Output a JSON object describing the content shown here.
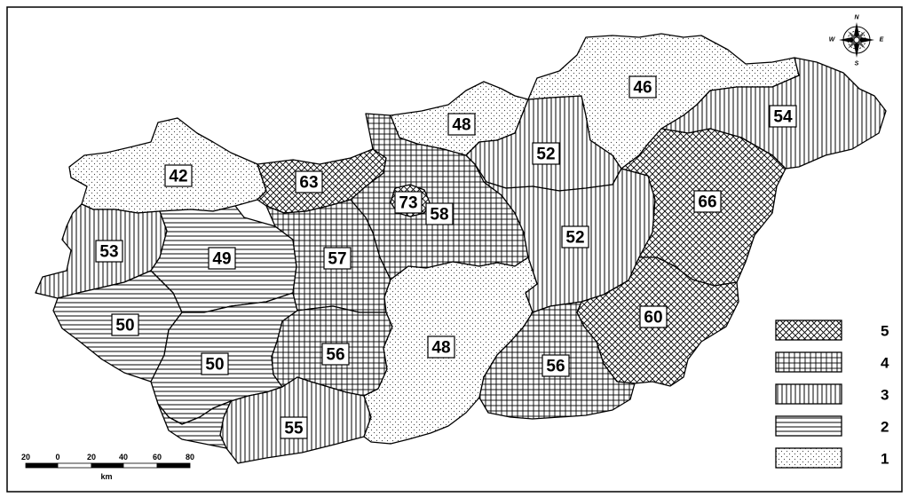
{
  "legend": {
    "title": "",
    "classes": [
      {
        "label": "5",
        "pattern": "crosshatch"
      },
      {
        "label": "4",
        "pattern": "grid"
      },
      {
        "label": "3",
        "pattern": "vertical"
      },
      {
        "label": "2",
        "pattern": "horizontal"
      },
      {
        "label": "1",
        "pattern": "dots"
      }
    ]
  },
  "regions": [
    {
      "name": "nw-dots",
      "value": "42",
      "class": 1
    },
    {
      "name": "west-vertical",
      "value": "53",
      "class": 3
    },
    {
      "name": "west-horizontal",
      "value": "49",
      "class": 2
    },
    {
      "name": "sw-horizontal-west",
      "value": "50",
      "class": 2
    },
    {
      "name": "sw-horizontal-south",
      "value": "50",
      "class": 2
    },
    {
      "name": "north-crosshatch",
      "value": "63",
      "class": 5
    },
    {
      "name": "central-grid-west",
      "value": "57",
      "class": 4
    },
    {
      "name": "capital",
      "value": "73",
      "class": 5
    },
    {
      "name": "central-grid",
      "value": "58",
      "class": 4
    },
    {
      "name": "south-grid-west",
      "value": "56",
      "class": 4
    },
    {
      "name": "south-vertical",
      "value": "55",
      "class": 3
    },
    {
      "name": "north-dots",
      "value": "48",
      "class": 1
    },
    {
      "name": "north-vertical",
      "value": "52",
      "class": 3
    },
    {
      "name": "central-east-vertical",
      "value": "52",
      "class": 3
    },
    {
      "name": "northeast-dots",
      "value": "46",
      "class": 1
    },
    {
      "name": "far-northeast-vertical",
      "value": "54",
      "class": 3
    },
    {
      "name": "east-crosshatch",
      "value": "66",
      "class": 5
    },
    {
      "name": "southeast-crosshatch",
      "value": "60",
      "class": 5
    },
    {
      "name": "south-central-dots",
      "value": "48",
      "class": 1
    },
    {
      "name": "south-grid-east",
      "value": "56",
      "class": 4
    }
  ],
  "scalebar": {
    "ticks": [
      "20",
      "0",
      "20",
      "40",
      "60",
      "80"
    ],
    "unit": "km"
  },
  "compass": {
    "n": "N",
    "s": "S",
    "e": "E",
    "w": "W"
  }
}
